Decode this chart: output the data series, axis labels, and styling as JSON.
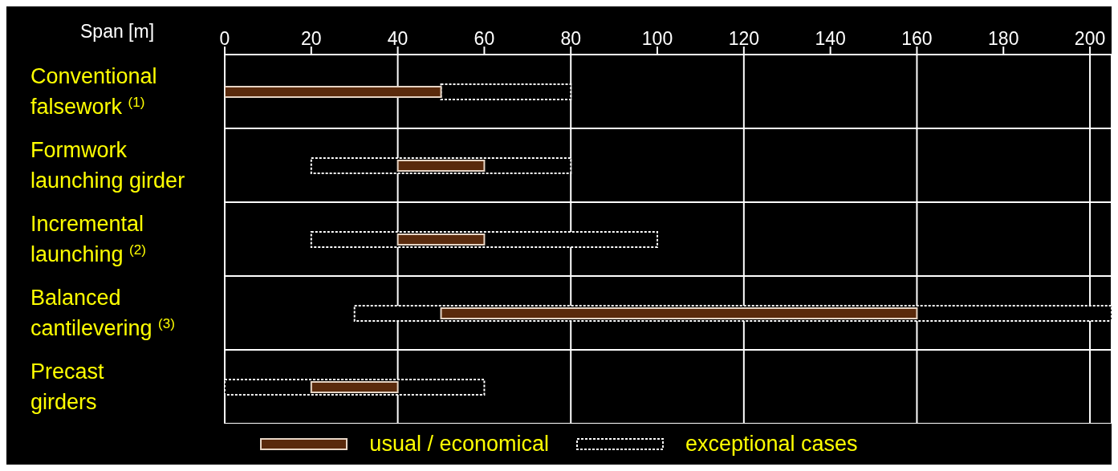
{
  "chart_data": {
    "type": "bar",
    "orientation": "horizontal",
    "xlabel": "Span [m]",
    "categories": [
      "Conventional falsework $^{(1)}$",
      "Formwork launching girder",
      "Incremental launching $^{(2)}$",
      "Balanced cantilevering $^{(3)}$",
      "Precast girders"
    ],
    "series": [
      {
        "name": "usual / economical",
        "color": "#5a2a0c",
        "line_style": "solid",
        "base": [
          0,
          40,
          40,
          50,
          20
        ],
        "values": [
          50,
          20,
          20,
          110,
          20
        ]
      },
      {
        "name": "exceptional cases",
        "color": "#ffffff",
        "line_style": "dashed",
        "base": [
          50,
          20,
          20,
          30,
          0
        ],
        "values": [
          30,
          60,
          80,
          175,
          60
        ]
      }
    ],
    "xlim": [
      0,
      205
    ],
    "xticks": [
      0,
      20,
      40,
      60,
      80,
      100,
      120,
      140,
      160,
      180,
      200
    ],
    "grid": true,
    "legend": "bottom"
  }
}
